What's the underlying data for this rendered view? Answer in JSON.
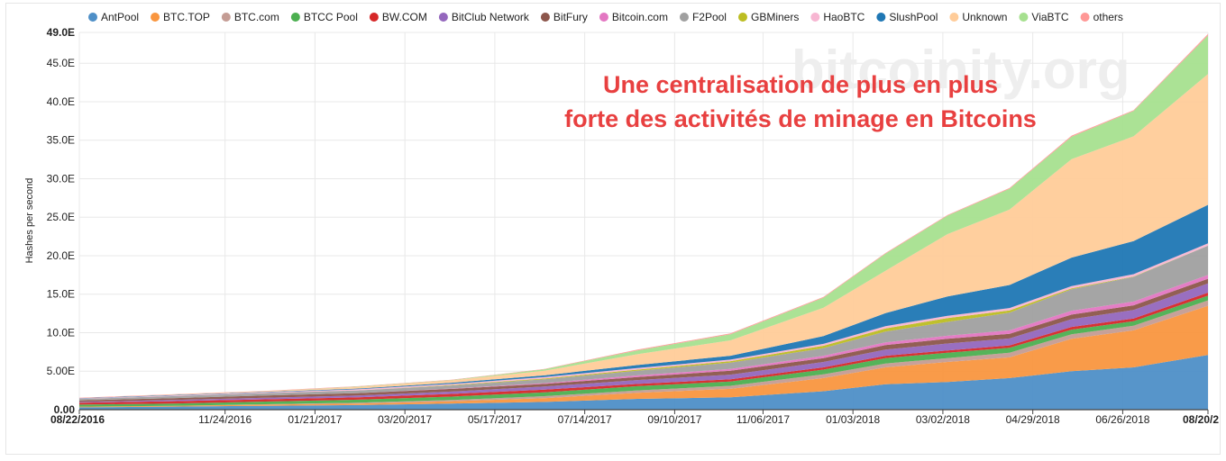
{
  "chart_data": {
    "type": "area",
    "stacked": true,
    "ylabel": "Hashes per second",
    "yticks": [
      "0.00",
      "5.00E",
      "10.0E",
      "15.0E",
      "20.0E",
      "25.0E",
      "30.0E",
      "35.0E",
      "40.0E",
      "45.0E",
      "49.0E"
    ],
    "ytick_values": [
      0,
      5,
      10,
      15,
      20,
      25,
      30,
      35,
      40,
      45,
      49
    ],
    "y_unit": "E",
    "ylim": [
      0,
      49
    ],
    "xlim": [
      "2016-08-22",
      "2018-08-20"
    ],
    "xticks": [
      {
        "label": "08/22/2016",
        "date": "2016-08-22",
        "bold": true
      },
      {
        "label": "11/24/2016",
        "date": "2016-11-24"
      },
      {
        "label": "01/21/2017",
        "date": "2017-01-21"
      },
      {
        "label": "03/20/2017",
        "date": "2017-03-20"
      },
      {
        "label": "05/17/2017",
        "date": "2017-05-17"
      },
      {
        "label": "07/14/2017",
        "date": "2017-07-14"
      },
      {
        "label": "09/10/2017",
        "date": "2017-09-10"
      },
      {
        "label": "11/06/2017",
        "date": "2017-11-06"
      },
      {
        "label": "01/03/2018",
        "date": "2018-01-03"
      },
      {
        "label": "03/02/2018",
        "date": "2018-03-02"
      },
      {
        "label": "04/29/2018",
        "date": "2018-04-29"
      },
      {
        "label": "06/26/2018",
        "date": "2018-06-26"
      },
      {
        "label": "08/20/2",
        "date": "2018-08-20",
        "bold": true
      }
    ],
    "grid": true,
    "legend_position": "top",
    "watermark": "bitcoinity.org",
    "annotation": [
      "Une centralisation de plus en plus",
      "forte des activités de minage en Bitcoins"
    ],
    "x": [
      "2016-08-22",
      "2016-10-21",
      "2016-12-20",
      "2017-02-18",
      "2017-04-19",
      "2017-06-18",
      "2017-08-17",
      "2017-10-16",
      "2017-12-15",
      "2018-01-24",
      "2018-03-05",
      "2018-04-14",
      "2018-05-24",
      "2018-07-03",
      "2018-08-20"
    ],
    "series": [
      {
        "name": "AntPool",
        "color": "#4e8fc7",
        "values": [
          0.3,
          0.4,
          0.5,
          0.6,
          0.8,
          1.0,
          1.4,
          1.6,
          2.4,
          3.3,
          3.6,
          4.1,
          5.0,
          5.5,
          7.1
        ]
      },
      {
        "name": "BTC.TOP",
        "color": "#f9963f",
        "values": [
          0.1,
          0.1,
          0.15,
          0.2,
          0.3,
          0.5,
          0.8,
          1.1,
          1.7,
          2.2,
          2.6,
          2.7,
          4.2,
          4.8,
          6.4
        ]
      },
      {
        "name": "BTC.com",
        "color": "#c49c94",
        "values": [
          0,
          0,
          0.05,
          0.1,
          0.15,
          0.25,
          0.3,
          0.4,
          0.5,
          0.5,
          0.5,
          0.6,
          0.6,
          0.6,
          0.7
        ]
      },
      {
        "name": "BTCC Pool",
        "color": "#4caf50",
        "values": [
          0.25,
          0.3,
          0.35,
          0.4,
          0.45,
          0.5,
          0.55,
          0.55,
          0.6,
          0.7,
          0.7,
          0.65,
          0.6,
          0.6,
          0.6
        ]
      },
      {
        "name": "BW.COM",
        "color": "#d62728",
        "values": [
          0.25,
          0.3,
          0.3,
          0.3,
          0.35,
          0.35,
          0.3,
          0.3,
          0.3,
          0.3,
          0.3,
          0.3,
          0.35,
          0.35,
          0.4
        ]
      },
      {
        "name": "BitClub Network",
        "color": "#9467bd",
        "values": [
          0.1,
          0.15,
          0.2,
          0.25,
          0.3,
          0.4,
          0.5,
          0.6,
          0.7,
          0.8,
          0.9,
          0.9,
          1.0,
          1.1,
          1.2
        ]
      },
      {
        "name": "BitFury",
        "color": "#8c564b",
        "values": [
          0.2,
          0.25,
          0.3,
          0.3,
          0.35,
          0.35,
          0.4,
          0.5,
          0.5,
          0.6,
          0.6,
          0.6,
          0.6,
          0.6,
          0.6
        ]
      },
      {
        "name": "Bitcoin.com",
        "color": "#e377c2",
        "values": [
          0,
          0,
          0,
          0,
          0.05,
          0.1,
          0.2,
          0.25,
          0.3,
          0.35,
          0.4,
          0.45,
          0.5,
          0.5,
          0.5
        ]
      },
      {
        "name": "F2Pool",
        "color": "#a0a0a0",
        "values": [
          0.2,
          0.25,
          0.3,
          0.35,
          0.4,
          0.5,
          0.6,
          0.8,
          1.0,
          1.4,
          1.8,
          2.3,
          2.8,
          3.2,
          3.8
        ]
      },
      {
        "name": "GBMiners",
        "color": "#bcbd22",
        "values": [
          0,
          0,
          0,
          0,
          0.05,
          0.1,
          0.15,
          0.2,
          0.3,
          0.4,
          0.5,
          0.3,
          0.1,
          0.05,
          0
        ]
      },
      {
        "name": "HaoBTC",
        "color": "#f7b6d2",
        "values": [
          0.05,
          0.1,
          0.1,
          0.15,
          0.15,
          0.2,
          0.2,
          0.2,
          0.25,
          0.3,
          0.3,
          0.3,
          0.3,
          0.3,
          0.3
        ]
      },
      {
        "name": "SlushPool",
        "color": "#1f77b4",
        "values": [
          0.05,
          0.05,
          0.05,
          0.1,
          0.15,
          0.2,
          0.4,
          0.5,
          1.0,
          1.7,
          2.5,
          3.0,
          3.7,
          4.3,
          5.0
        ]
      },
      {
        "name": "Unknown",
        "color": "#ffcc99",
        "values": [
          0,
          0.05,
          0.1,
          0.2,
          0.3,
          0.6,
          1.4,
          2.0,
          3.7,
          5.5,
          8.1,
          9.8,
          12.8,
          13.6,
          17.0
        ]
      },
      {
        "name": "ViaBTC",
        "color": "#a6e08f",
        "values": [
          0,
          0,
          0,
          0.05,
          0.05,
          0.2,
          0.5,
          0.8,
          1.3,
          2.2,
          2.4,
          2.7,
          2.9,
          3.3,
          5.0
        ]
      },
      {
        "name": "others",
        "color": "#ff9896",
        "values": [
          0.05,
          0.05,
          0.05,
          0.05,
          0.05,
          0.05,
          0.1,
          0.1,
          0.1,
          0.1,
          0.1,
          0.1,
          0.15,
          0.1,
          0.2
        ]
      }
    ]
  }
}
